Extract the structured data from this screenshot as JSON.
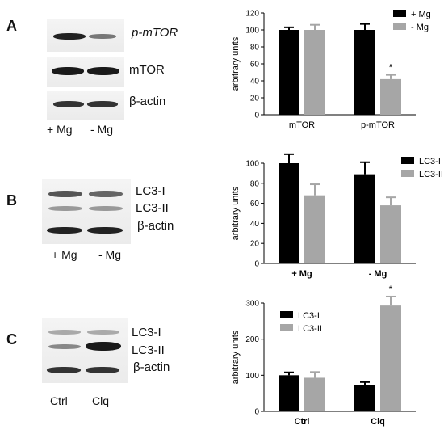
{
  "panels": [
    {
      "letter": "A",
      "blot": {
        "labels": [
          "p-mTOR",
          "mTOR",
          "β-actin"
        ],
        "lanes": [
          "+ Mg",
          "- Mg"
        ]
      },
      "chart_data": {
        "type": "bar",
        "categories": [
          "mTOR",
          "p-mTOR"
        ],
        "series": [
          {
            "name": "+ Mg",
            "color": "#000000",
            "values": [
              100,
              100
            ],
            "errors": [
              3,
              7
            ]
          },
          {
            "name": "- Mg",
            "color": "#a6a6a6",
            "values": [
              100,
              42
            ],
            "errors": [
              6,
              5
            ]
          }
        ],
        "ylabel": "arbitrary units",
        "ylim": [
          0,
          120
        ],
        "yticks": [
          0,
          20,
          40,
          60,
          80,
          100,
          120
        ],
        "annotations": [
          {
            "category": "p-mTOR",
            "series": "- Mg",
            "text": "*"
          }
        ],
        "legend": "top-right",
        "grid": false
      }
    },
    {
      "letter": "B",
      "blot": {
        "labels": [
          "LC3-I",
          "LC3-II",
          "β-actin"
        ],
        "lanes": [
          "+ Mg",
          "- Mg"
        ]
      },
      "chart_data": {
        "type": "bar",
        "categories": [
          "+ Mg",
          "- Mg"
        ],
        "series": [
          {
            "name": "LC3-I",
            "color": "#000000",
            "values": [
              100,
              89
            ],
            "errors": [
              9,
              12
            ]
          },
          {
            "name": "LC3-II",
            "color": "#a6a6a6",
            "values": [
              68,
              58
            ],
            "errors": [
              11,
              8
            ]
          }
        ],
        "ylabel": "arbitrary units",
        "ylim": [
          0,
          100
        ],
        "yticks": [
          0,
          20,
          40,
          60,
          80,
          100
        ],
        "annotations": [],
        "legend": "top-right",
        "grid": false
      }
    },
    {
      "letter": "C",
      "blot": {
        "labels": [
          "LC3-I",
          "LC3-II",
          "β-actin"
        ],
        "lanes": [
          "Ctrl",
          "Clq"
        ]
      },
      "chart_data": {
        "type": "bar",
        "categories": [
          "Ctrl",
          "Clq"
        ],
        "series": [
          {
            "name": "LC3-I",
            "color": "#000000",
            "values": [
              100,
              73
            ],
            "errors": [
              8,
              8
            ]
          },
          {
            "name": "LC3-II",
            "color": "#a6a6a6",
            "values": [
              93,
              293
            ],
            "errors": [
              16,
              25
            ]
          }
        ],
        "ylabel": "arbitrary units",
        "ylim": [
          0,
          300
        ],
        "yticks": [
          0,
          100,
          200,
          300
        ],
        "annotations": [
          {
            "category": "Clq",
            "series": "LC3-II",
            "text": "*"
          }
        ],
        "legend": "top-left",
        "grid": false
      }
    }
  ]
}
